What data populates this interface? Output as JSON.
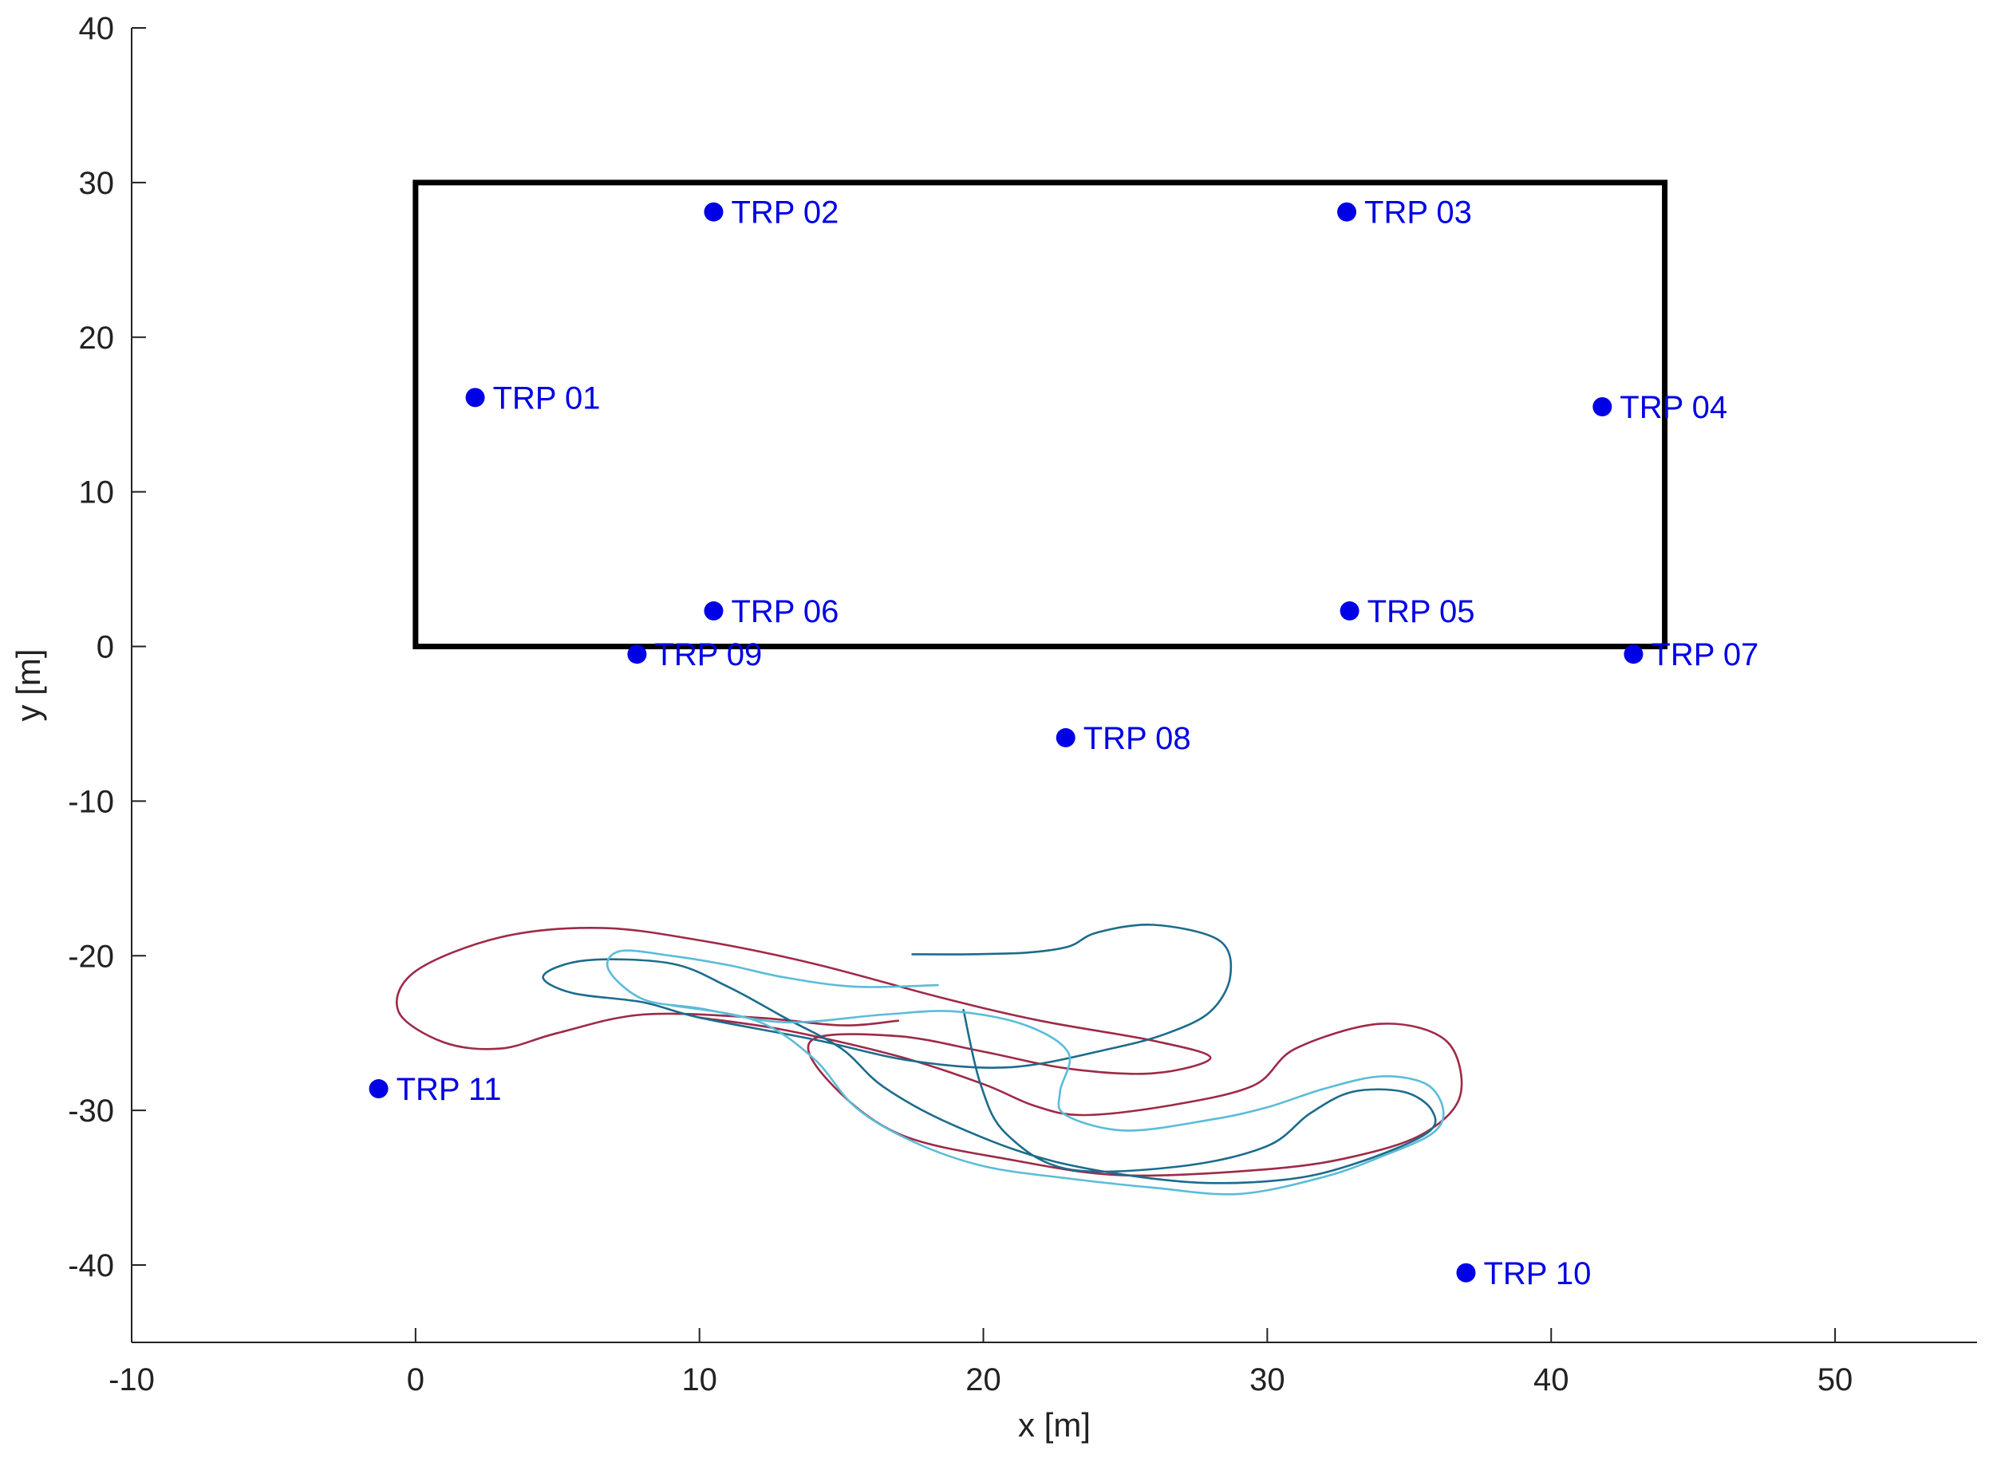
{
  "chart_data": {
    "type": "scatter",
    "title": "",
    "xlabel": "x [m]",
    "ylabel": "y [m]",
    "xlim": [
      -10,
      55
    ],
    "ylim": [
      -45,
      40
    ],
    "xticks": [
      -10,
      0,
      10,
      20,
      30,
      40,
      50
    ],
    "yticks": [
      -40,
      -30,
      -20,
      -10,
      0,
      10,
      20,
      30,
      40
    ],
    "grid": false,
    "legend": "none",
    "region": {
      "x0": 0,
      "y0": 0,
      "x1": 44,
      "y1": 30,
      "color": "#000000"
    },
    "points": [
      {
        "label": "TRP 01",
        "x": 2.1,
        "y": 16.1
      },
      {
        "label": "TRP 02",
        "x": 10.5,
        "y": 28.1
      },
      {
        "label": "TRP 03",
        "x": 32.8,
        "y": 28.1
      },
      {
        "label": "TRP 04",
        "x": 41.8,
        "y": 15.5
      },
      {
        "label": "TRP 05",
        "x": 32.9,
        "y": 2.3
      },
      {
        "label": "TRP 06",
        "x": 10.5,
        "y": 2.3
      },
      {
        "label": "TRP 07",
        "x": 42.9,
        "y": -0.5
      },
      {
        "label": "TRP 08",
        "x": 22.9,
        "y": -5.9
      },
      {
        "label": "TRP 09",
        "x": 7.8,
        "y": -0.5
      },
      {
        "label": "TRP 10",
        "x": 37.0,
        "y": -40.5
      },
      {
        "label": "TRP 11",
        "x": -1.3,
        "y": -28.6
      }
    ],
    "point_color": "#0000e6",
    "trajectories": [
      {
        "color": "#9e2a48",
        "points": [
          [
            17,
            -24.2
          ],
          [
            15,
            -24.5
          ],
          [
            12,
            -24
          ],
          [
            8,
            -23.8
          ],
          [
            5,
            -25
          ],
          [
            3,
            -26
          ],
          [
            1,
            -25.6
          ],
          [
            -0.6,
            -23.6
          ],
          [
            0,
            -21
          ],
          [
            3,
            -18.8
          ],
          [
            6.5,
            -18.2
          ],
          [
            10,
            -19
          ],
          [
            14,
            -20.5
          ],
          [
            18.5,
            -22.7
          ],
          [
            22,
            -24.2
          ],
          [
            26,
            -25.5
          ],
          [
            28,
            -26.6
          ],
          [
            26,
            -27.6
          ],
          [
            23,
            -27.3
          ],
          [
            20,
            -26.2
          ],
          [
            17,
            -25.2
          ],
          [
            14,
            -25.4
          ],
          [
            14.5,
            -28
          ],
          [
            17,
            -31.5
          ],
          [
            21,
            -33.2
          ],
          [
            25,
            -34.2
          ],
          [
            30,
            -33.8
          ],
          [
            33,
            -33
          ],
          [
            35.5,
            -31.5
          ],
          [
            36.8,
            -29
          ],
          [
            36.3,
            -25.5
          ],
          [
            34,
            -24.4
          ],
          [
            31,
            -26
          ],
          [
            29.5,
            -28.4
          ],
          [
            26.5,
            -29.7
          ],
          [
            23.5,
            -30.3
          ],
          [
            21.8,
            -29.7
          ],
          [
            20,
            -28.3
          ],
          [
            17,
            -26.5
          ],
          [
            13,
            -24.8
          ],
          [
            10,
            -24
          ]
        ]
      },
      {
        "color": "#1c6c8c",
        "points": [
          [
            17.5,
            -19.9
          ],
          [
            19.5,
            -19.9
          ],
          [
            21.5,
            -19.8
          ],
          [
            23,
            -19.4
          ],
          [
            24,
            -18.5
          ],
          [
            26,
            -18
          ],
          [
            28.3,
            -19
          ],
          [
            28.7,
            -21.3
          ],
          [
            28,
            -23.6
          ],
          [
            26.5,
            -25
          ],
          [
            24.5,
            -26
          ],
          [
            21,
            -27.2
          ],
          [
            17.5,
            -26.8
          ],
          [
            14,
            -25.4
          ],
          [
            10,
            -24
          ],
          [
            8,
            -23
          ],
          [
            5.5,
            -22.4
          ],
          [
            4.5,
            -21.3
          ],
          [
            6,
            -20.3
          ],
          [
            9,
            -20.5
          ],
          [
            11,
            -22
          ],
          [
            13,
            -24
          ],
          [
            15,
            -26
          ],
          [
            16.5,
            -28.5
          ],
          [
            19,
            -31
          ],
          [
            22.5,
            -33.3
          ],
          [
            27,
            -34.6
          ],
          [
            30.5,
            -34.5
          ],
          [
            33,
            -33.5
          ],
          [
            35.6,
            -31.5
          ],
          [
            35.8,
            -30
          ],
          [
            34.8,
            -28.8
          ],
          [
            33,
            -28.8
          ],
          [
            31.5,
            -30.2
          ],
          [
            30,
            -32.3
          ],
          [
            27,
            -33.6
          ],
          [
            23,
            -33.8
          ],
          [
            20.8,
            -31.5
          ],
          [
            19.9,
            -28.3
          ],
          [
            19.3,
            -23.5
          ]
        ]
      },
      {
        "color": "#5bbcd8",
        "points": [
          [
            18.4,
            -21.9
          ],
          [
            15.5,
            -22
          ],
          [
            13,
            -21.4
          ],
          [
            11,
            -20.6
          ],
          [
            9,
            -20
          ],
          [
            7.2,
            -19.7
          ],
          [
            6.8,
            -20.9
          ],
          [
            8,
            -22.8
          ],
          [
            10,
            -23.4
          ],
          [
            13,
            -24.3
          ],
          [
            16.5,
            -23.8
          ],
          [
            19,
            -23.6
          ],
          [
            21.5,
            -24.5
          ],
          [
            23,
            -26.3
          ],
          [
            22.7,
            -28.8
          ],
          [
            22.9,
            -30.3
          ],
          [
            25,
            -31.3
          ],
          [
            28,
            -30.6
          ],
          [
            30,
            -29.8
          ],
          [
            32,
            -28.6
          ],
          [
            34,
            -27.8
          ],
          [
            35.6,
            -28.3
          ],
          [
            36.2,
            -30
          ],
          [
            35.8,
            -31.5
          ],
          [
            34,
            -33
          ],
          [
            32,
            -34.3
          ],
          [
            29,
            -35.4
          ],
          [
            26,
            -35
          ],
          [
            23,
            -34.4
          ],
          [
            20,
            -33.6
          ],
          [
            17.5,
            -32
          ],
          [
            15.5,
            -29.8
          ],
          [
            14,
            -26.6
          ],
          [
            12,
            -24.2
          ],
          [
            9,
            -23.2
          ]
        ]
      }
    ]
  }
}
